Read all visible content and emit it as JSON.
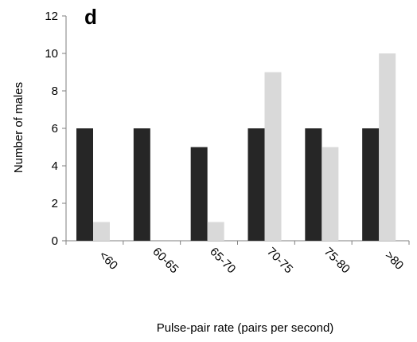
{
  "chart_data": {
    "type": "bar",
    "panel_label": "d",
    "xlabel": "Pulse-pair rate (pairs per second)",
    "ylabel": "Number of males",
    "categories": [
      "<60",
      "60-65",
      "65-70",
      "70-75",
      "75-80",
      ">80"
    ],
    "series": [
      {
        "values": [
          6,
          6,
          5,
          6,
          6,
          6
        ]
      },
      {
        "values": [
          1,
          0,
          1,
          9,
          5,
          10
        ]
      }
    ],
    "ylim": [
      0,
      12
    ],
    "yticks": [
      "0",
      "2",
      "4",
      "6",
      "8",
      "10",
      "12"
    ],
    "grid": false,
    "colors": {
      "series0": "#262626",
      "series1": "#d9d9d9",
      "axis": "#7f7f7f"
    }
  }
}
